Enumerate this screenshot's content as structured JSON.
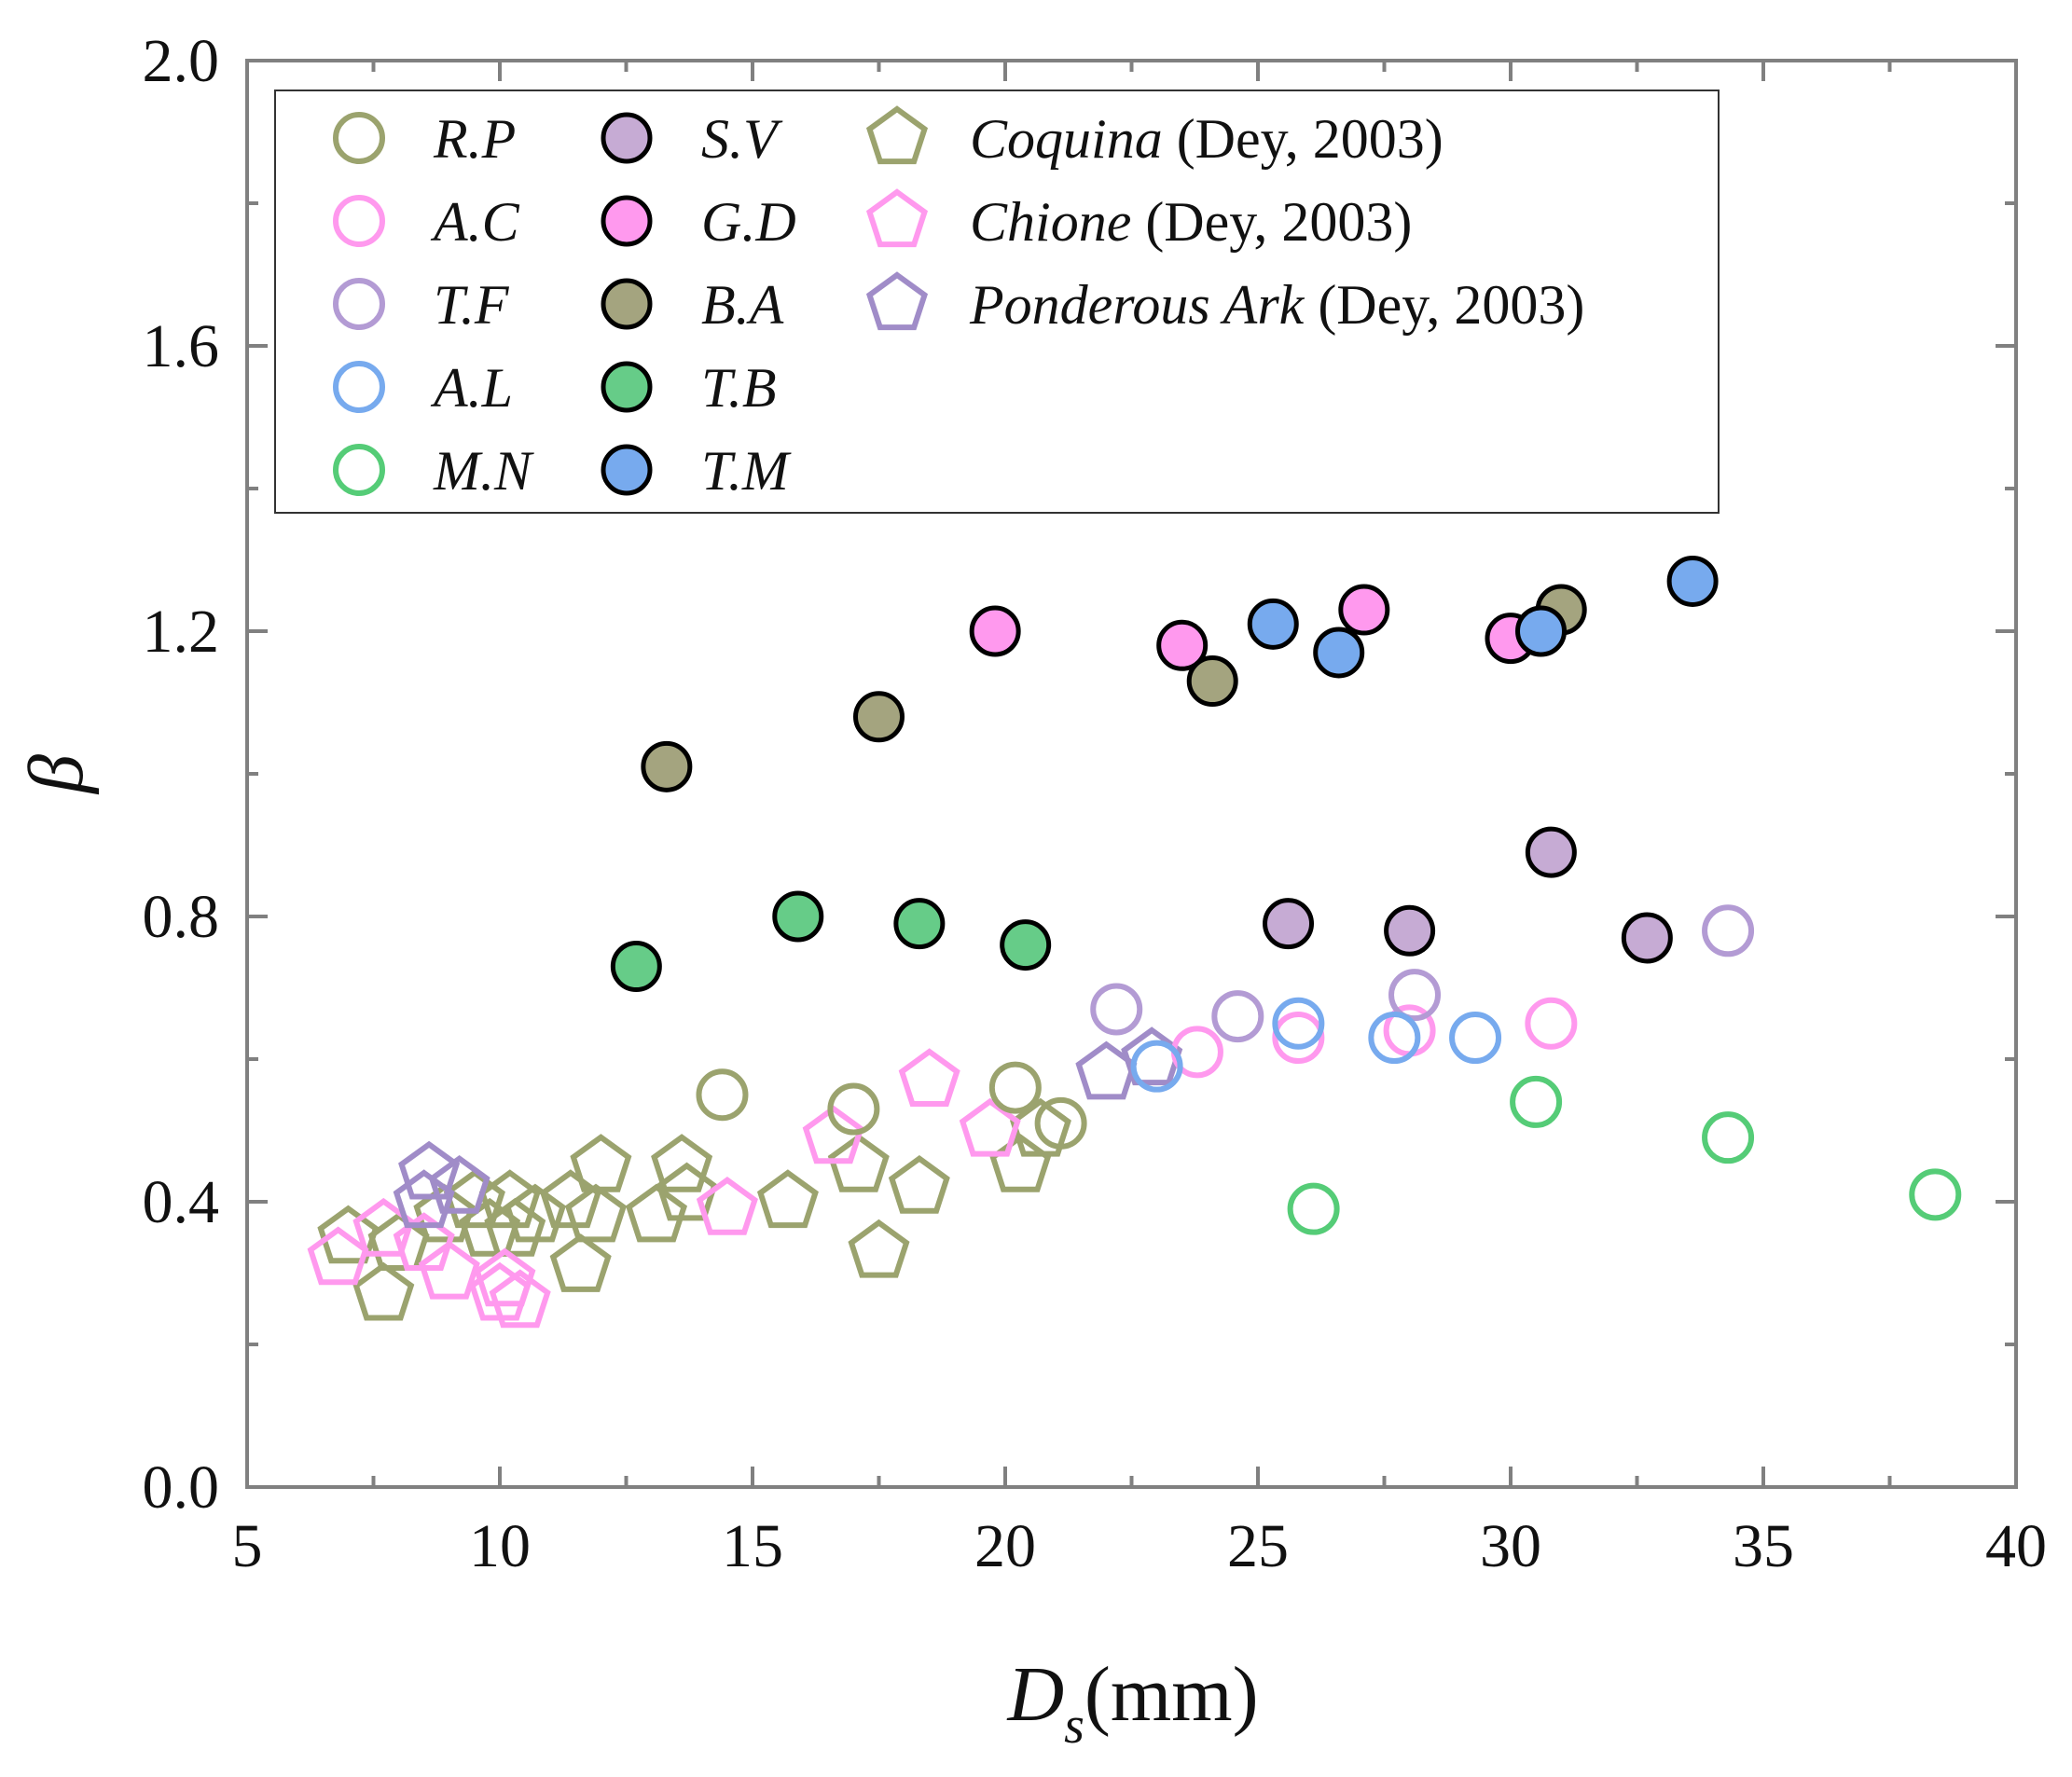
{
  "chart_data": {
    "type": "scatter",
    "title": "",
    "xlabel": {
      "main": "D",
      "sub": "s",
      "unit": "(mm)"
    },
    "ylabel": "β",
    "xlim": [
      5,
      40
    ],
    "ylim": [
      0.0,
      2.0
    ],
    "x_ticks": [
      5,
      10,
      15,
      20,
      25,
      30,
      35,
      40
    ],
    "y_ticks": [
      0.0,
      0.4,
      0.8,
      1.2,
      1.6,
      2.0
    ],
    "x_tick_labels": [
      "5",
      "10",
      "15",
      "20",
      "25",
      "30",
      "35",
      "40"
    ],
    "y_tick_labels": [
      "0.0",
      "0.4",
      "0.8",
      "1.2",
      "1.6",
      "2.0"
    ],
    "grid": false,
    "legend_position": "top-left",
    "series": [
      {
        "name": "R.P",
        "source": "",
        "marker": "circle",
        "filled": false,
        "color": "#9ba36e",
        "points": [
          [
            14.4,
            0.55
          ],
          [
            17.0,
            0.53
          ],
          [
            20.2,
            0.56
          ],
          [
            21.1,
            0.51
          ]
        ]
      },
      {
        "name": "A.C",
        "source": "",
        "marker": "circle",
        "filled": false,
        "color": "#ff99ee",
        "points": [
          [
            23.8,
            0.61
          ],
          [
            25.8,
            0.63
          ],
          [
            28.0,
            0.64
          ],
          [
            30.8,
            0.65
          ]
        ]
      },
      {
        "name": "T.F",
        "source": "",
        "marker": "circle",
        "filled": false,
        "color": "#b39bd4",
        "points": [
          [
            22.2,
            0.67
          ],
          [
            24.6,
            0.66
          ],
          [
            28.1,
            0.69
          ],
          [
            34.3,
            0.78
          ]
        ]
      },
      {
        "name": "A.L",
        "source": "",
        "marker": "circle",
        "filled": false,
        "color": "#77aaee",
        "points": [
          [
            23.0,
            0.59
          ],
          [
            25.8,
            0.65
          ],
          [
            27.7,
            0.63
          ],
          [
            29.3,
            0.63
          ]
        ]
      },
      {
        "name": "M.N",
        "source": "",
        "marker": "circle",
        "filled": false,
        "color": "#55cc77",
        "points": [
          [
            26.1,
            0.39
          ],
          [
            30.5,
            0.54
          ],
          [
            34.3,
            0.49
          ],
          [
            38.4,
            0.41
          ]
        ]
      },
      {
        "name": "S.V",
        "source": "",
        "marker": "circle",
        "filled": true,
        "color": "#c6abd4",
        "points": [
          [
            25.6,
            0.79
          ],
          [
            28.0,
            0.78
          ],
          [
            30.8,
            0.89
          ],
          [
            32.7,
            0.77
          ]
        ]
      },
      {
        "name": "G.D",
        "source": "",
        "marker": "circle",
        "filled": true,
        "color": "#ff99ee",
        "points": [
          [
            19.8,
            1.2
          ],
          [
            23.5,
            1.18
          ],
          [
            27.1,
            1.23
          ],
          [
            30.0,
            1.19
          ]
        ]
      },
      {
        "name": "B.A",
        "source": "",
        "marker": "circle",
        "filled": true,
        "color": "#a4a47f",
        "points": [
          [
            13.3,
            1.01
          ],
          [
            17.5,
            1.08
          ],
          [
            24.1,
            1.13
          ],
          [
            31.0,
            1.23
          ]
        ]
      },
      {
        "name": "T.B",
        "source": "",
        "marker": "circle",
        "filled": true,
        "color": "#66cc88",
        "points": [
          [
            12.7,
            0.73
          ],
          [
            15.9,
            0.8
          ],
          [
            18.3,
            0.79
          ],
          [
            20.4,
            0.76
          ]
        ]
      },
      {
        "name": "T.M",
        "source": "",
        "marker": "circle",
        "filled": true,
        "color": "#77aaee",
        "points": [
          [
            25.3,
            1.21
          ],
          [
            26.6,
            1.17
          ],
          [
            30.6,
            1.2
          ],
          [
            33.6,
            1.27
          ]
        ]
      },
      {
        "name": "Coquina",
        "source": " (Dey, 2003)",
        "marker": "pentagon",
        "filled": false,
        "color": "#9ba36e",
        "points": [
          [
            7.0,
            0.35
          ],
          [
            7.7,
            0.27
          ],
          [
            8.0,
            0.34
          ],
          [
            8.9,
            0.38
          ],
          [
            9.5,
            0.4
          ],
          [
            9.8,
            0.36
          ],
          [
            10.2,
            0.4
          ],
          [
            10.3,
            0.36
          ],
          [
            10.7,
            0.38
          ],
          [
            11.4,
            0.4
          ],
          [
            11.6,
            0.31
          ],
          [
            11.9,
            0.38
          ],
          [
            12.0,
            0.45
          ],
          [
            13.1,
            0.38
          ],
          [
            13.6,
            0.45
          ],
          [
            13.7,
            0.41
          ],
          [
            15.7,
            0.4
          ],
          [
            17.1,
            0.45
          ],
          [
            17.5,
            0.33
          ],
          [
            18.3,
            0.42
          ],
          [
            20.3,
            0.45
          ],
          [
            20.7,
            0.5
          ]
        ]
      },
      {
        "name": "Chione",
        "source": " (Dey, 2003)",
        "marker": "pentagon",
        "filled": false,
        "color": "#ff99ee",
        "points": [
          [
            6.8,
            0.32
          ],
          [
            7.7,
            0.36
          ],
          [
            8.5,
            0.34
          ],
          [
            9.0,
            0.3
          ],
          [
            10.0,
            0.27
          ],
          [
            10.1,
            0.29
          ],
          [
            10.4,
            0.26
          ],
          [
            14.5,
            0.39
          ],
          [
            16.6,
            0.49
          ],
          [
            18.5,
            0.57
          ],
          [
            19.7,
            0.5
          ]
        ]
      },
      {
        "name": "Ponderous Ark",
        "source": " (Dey, 2003)",
        "marker": "pentagon",
        "filled": false,
        "color": "#a08cc8",
        "points": [
          [
            8.6,
            0.44
          ],
          [
            8.5,
            0.4
          ],
          [
            9.2,
            0.42
          ],
          [
            22.0,
            0.58
          ],
          [
            22.9,
            0.6
          ]
        ]
      }
    ]
  }
}
